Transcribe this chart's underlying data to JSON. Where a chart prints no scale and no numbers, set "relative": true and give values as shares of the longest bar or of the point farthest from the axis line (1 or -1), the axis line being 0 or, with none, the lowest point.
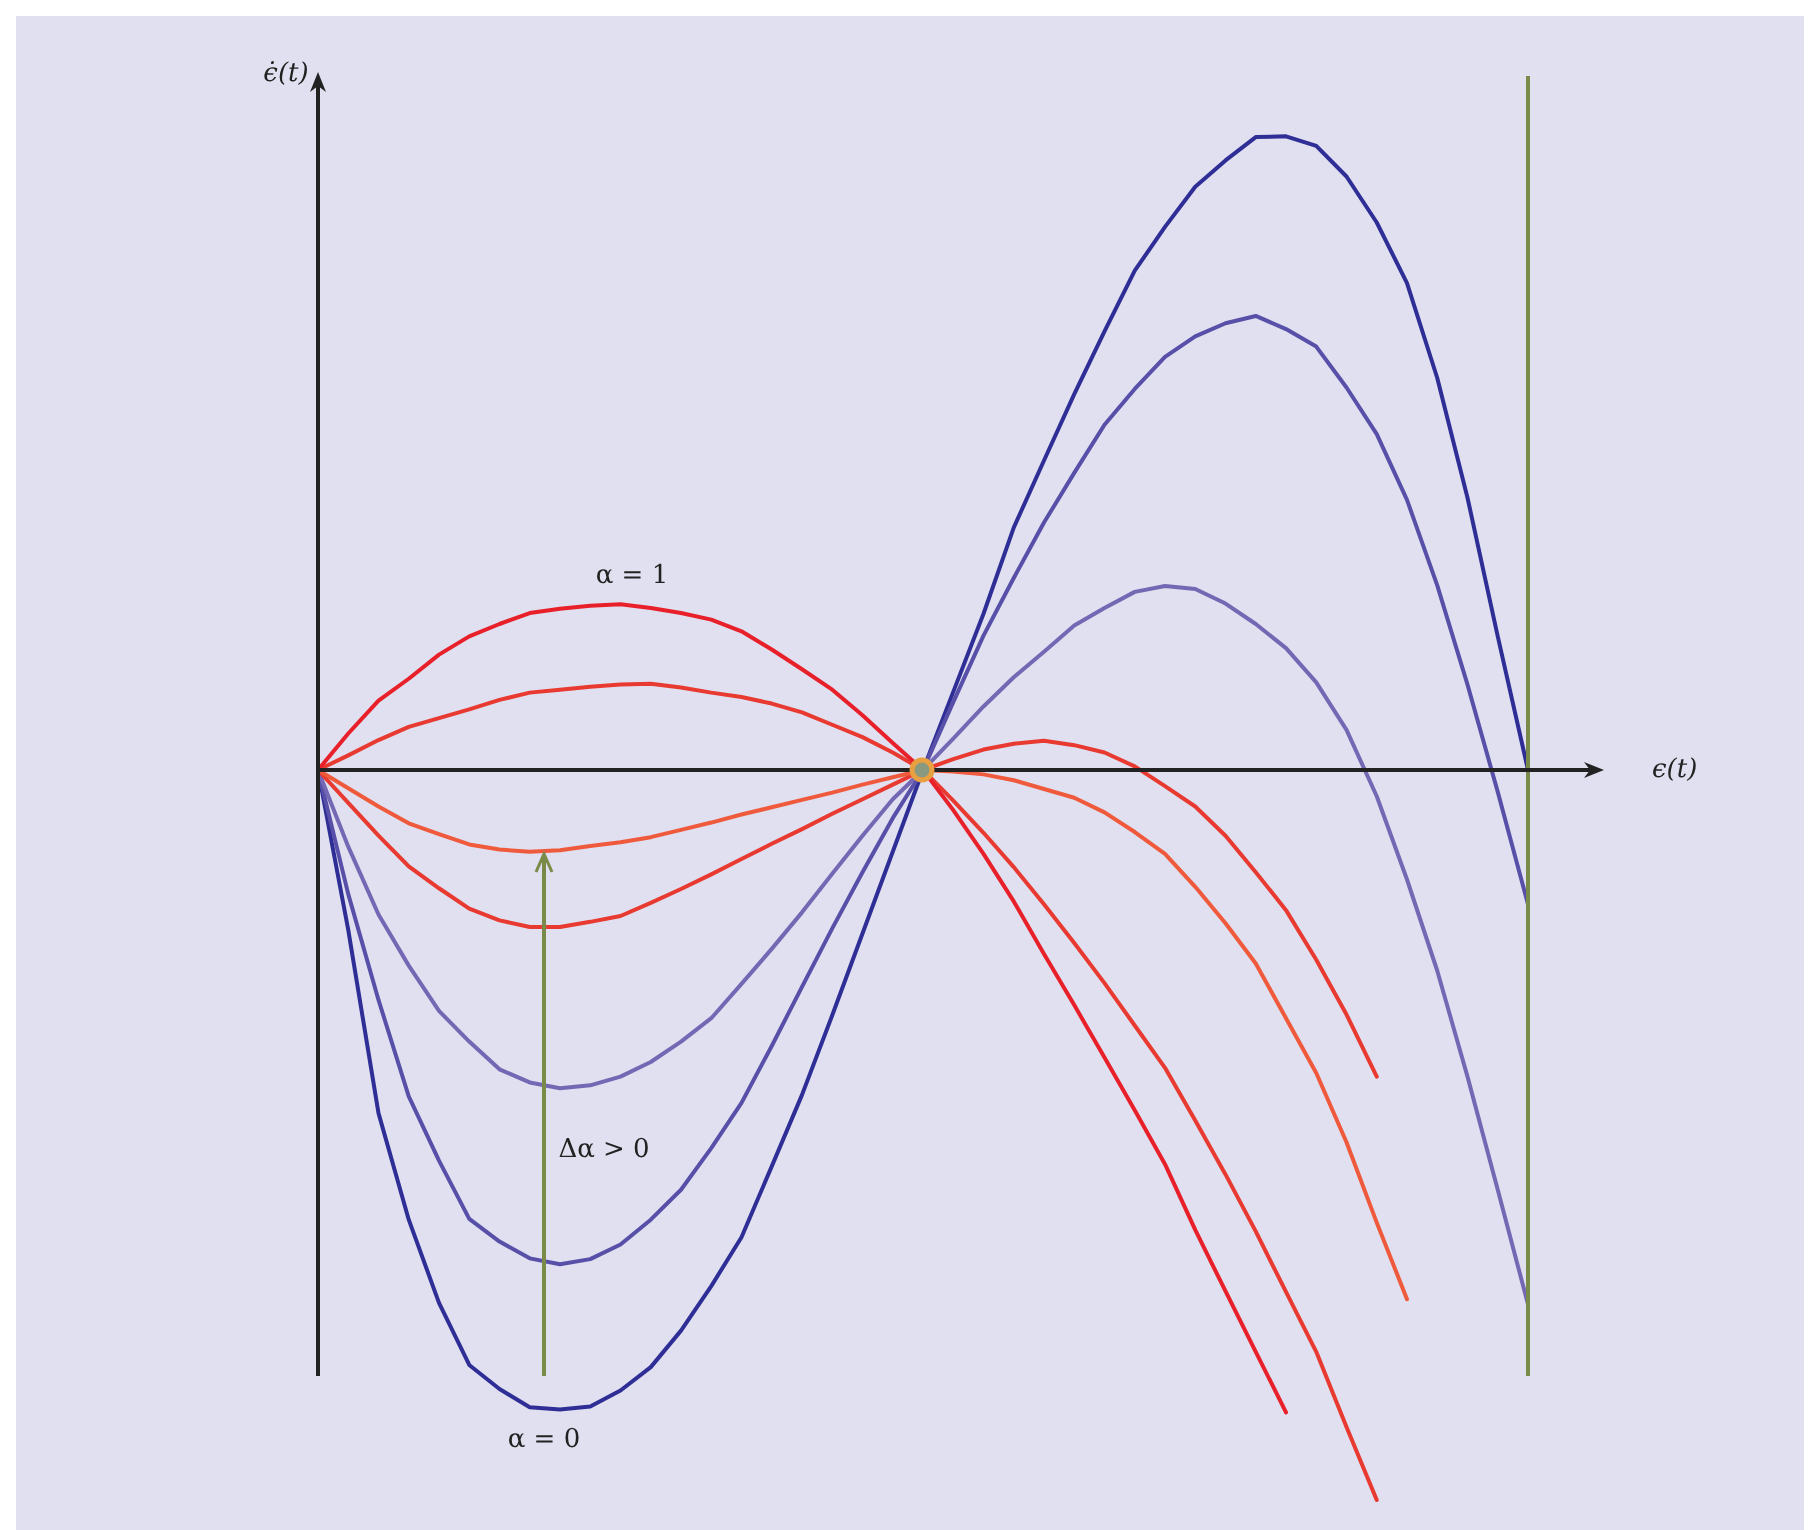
{
  "chart_data": {
    "type": "line",
    "relative": true,
    "xlabel": "ϵ(t)",
    "ylabel": "ϵ̇(t)",
    "marker": "none",
    "line_style": "solid",
    "legend": false,
    "annotations": [
      "α = 1",
      "Δα > 0",
      "α = 0"
    ],
    "categories": [
      null,
      null,
      null,
      null,
      null,
      null,
      null,
      null,
      null,
      null,
      null,
      null,
      null,
      null,
      null,
      null,
      null,
      null,
      null,
      null,
      null,
      null,
      null,
      null,
      null,
      null,
      null,
      null,
      null,
      null,
      null,
      null,
      null,
      null,
      null,
      null,
      null,
      null,
      null,
      null,
      null
    ],
    "series": [
      {
        "color": "#e8202a",
        "values": [
          0,
          0.05,
          0.095,
          0.125,
          0.158,
          0.183,
          0.2,
          0.215,
          0.221,
          0.225,
          0.227,
          0.222,
          0.215,
          0.206,
          0.19,
          0.165,
          0.138,
          0.11,
          0.075,
          0.037,
          0,
          -0.055,
          -0.115,
          -0.18,
          -0.252,
          -0.322,
          -0.394,
          -0.466,
          -0.54,
          -0.63,
          -0.714,
          -0.797,
          -0.88,
          null,
          null,
          null,
          null,
          null,
          null,
          null,
          null
        ]
      },
      {
        "color": "#e83a30",
        "values": [
          0,
          0.02,
          0.041,
          0.059,
          0.071,
          0.083,
          0.096,
          0.106,
          0.11,
          0.114,
          0.117,
          0.118,
          0.113,
          0.106,
          0.1,
          0.091,
          0.079,
          0.062,
          0.045,
          0.024,
          0,
          -0.042,
          -0.086,
          -0.133,
          -0.184,
          -0.237,
          -0.292,
          -0.35,
          -0.408,
          -0.48,
          -0.554,
          -0.632,
          -0.715,
          -0.797,
          -0.9,
          -1,
          null,
          null,
          null,
          null,
          null
        ]
      },
      {
        "color": "#f05a3c",
        "values": [
          0,
          -0.025,
          -0.05,
          -0.073,
          -0.088,
          -0.102,
          -0.109,
          -0.112,
          -0.11,
          -0.104,
          -0.099,
          -0.092,
          -0.082,
          -0.072,
          -0.061,
          -0.051,
          -0.041,
          -0.031,
          -0.02,
          -0.01,
          0,
          -0.002,
          -0.006,
          -0.014,
          -0.026,
          -0.038,
          -0.058,
          -0.085,
          -0.115,
          -0.16,
          -0.21,
          -0.265,
          -0.34,
          -0.415,
          -0.51,
          -0.62,
          -0.725,
          null,
          null,
          null,
          null
        ]
      },
      {
        "color": "#e83a30",
        "values": [
          0,
          -0.045,
          -0.09,
          -0.132,
          -0.162,
          -0.19,
          -0.206,
          -0.215,
          -0.215,
          -0.208,
          -0.2,
          -0.182,
          -0.163,
          -0.143,
          -0.122,
          -0.101,
          -0.081,
          -0.06,
          -0.04,
          -0.02,
          0,
          0.015,
          0.028,
          0.036,
          0.04,
          0.034,
          0.024,
          0.005,
          -0.022,
          -0.05,
          -0.09,
          -0.14,
          -0.192,
          -0.26,
          -0.335,
          -0.42,
          null,
          null,
          null,
          null,
          null
        ]
      },
      {
        "color": "#7468b4",
        "values": [
          0,
          -0.105,
          -0.198,
          -0.268,
          -0.33,
          -0.372,
          -0.41,
          -0.428,
          -0.436,
          -0.432,
          -0.42,
          -0.4,
          -0.372,
          -0.34,
          -0.293,
          -0.245,
          -0.195,
          -0.142,
          -0.09,
          -0.04,
          0,
          0.043,
          0.087,
          0.127,
          0.162,
          0.198,
          0.222,
          0.244,
          0.252,
          0.248,
          0.228,
          0.2,
          0.167,
          0.12,
          0.055,
          -0.036,
          -0.15,
          -0.275,
          -0.42,
          -0.575,
          -0.732
        ]
      },
      {
        "color": "#5850a8",
        "values": [
          0,
          -0.17,
          -0.315,
          -0.447,
          -0.535,
          -0.615,
          -0.646,
          -0.669,
          -0.677,
          -0.67,
          -0.65,
          -0.616,
          -0.575,
          -0.518,
          -0.456,
          -0.378,
          -0.297,
          -0.217,
          -0.14,
          -0.066,
          0,
          0.093,
          0.184,
          0.263,
          0.339,
          0.407,
          0.473,
          0.522,
          0.566,
          0.594,
          0.612,
          0.622,
          0.604,
          0.58,
          0.524,
          0.46,
          0.37,
          0.253,
          0.117,
          -0.03,
          -0.184
        ]
      },
      {
        "color": "#2e2e96",
        "values": [
          0,
          -0.219,
          -0.47,
          -0.616,
          -0.73,
          -0.815,
          -0.848,
          -0.873,
          -0.876,
          -0.872,
          -0.85,
          -0.818,
          -0.768,
          -0.707,
          -0.64,
          -0.543,
          -0.445,
          -0.336,
          -0.224,
          -0.112,
          0,
          0.107,
          0.214,
          0.332,
          0.424,
          0.515,
          0.601,
          0.684,
          0.744,
          0.799,
          0.835,
          0.867,
          0.868,
          0.855,
          0.813,
          0.75,
          0.667,
          0.537,
          0.373,
          0.183,
          0
        ]
      }
    ]
  }
}
